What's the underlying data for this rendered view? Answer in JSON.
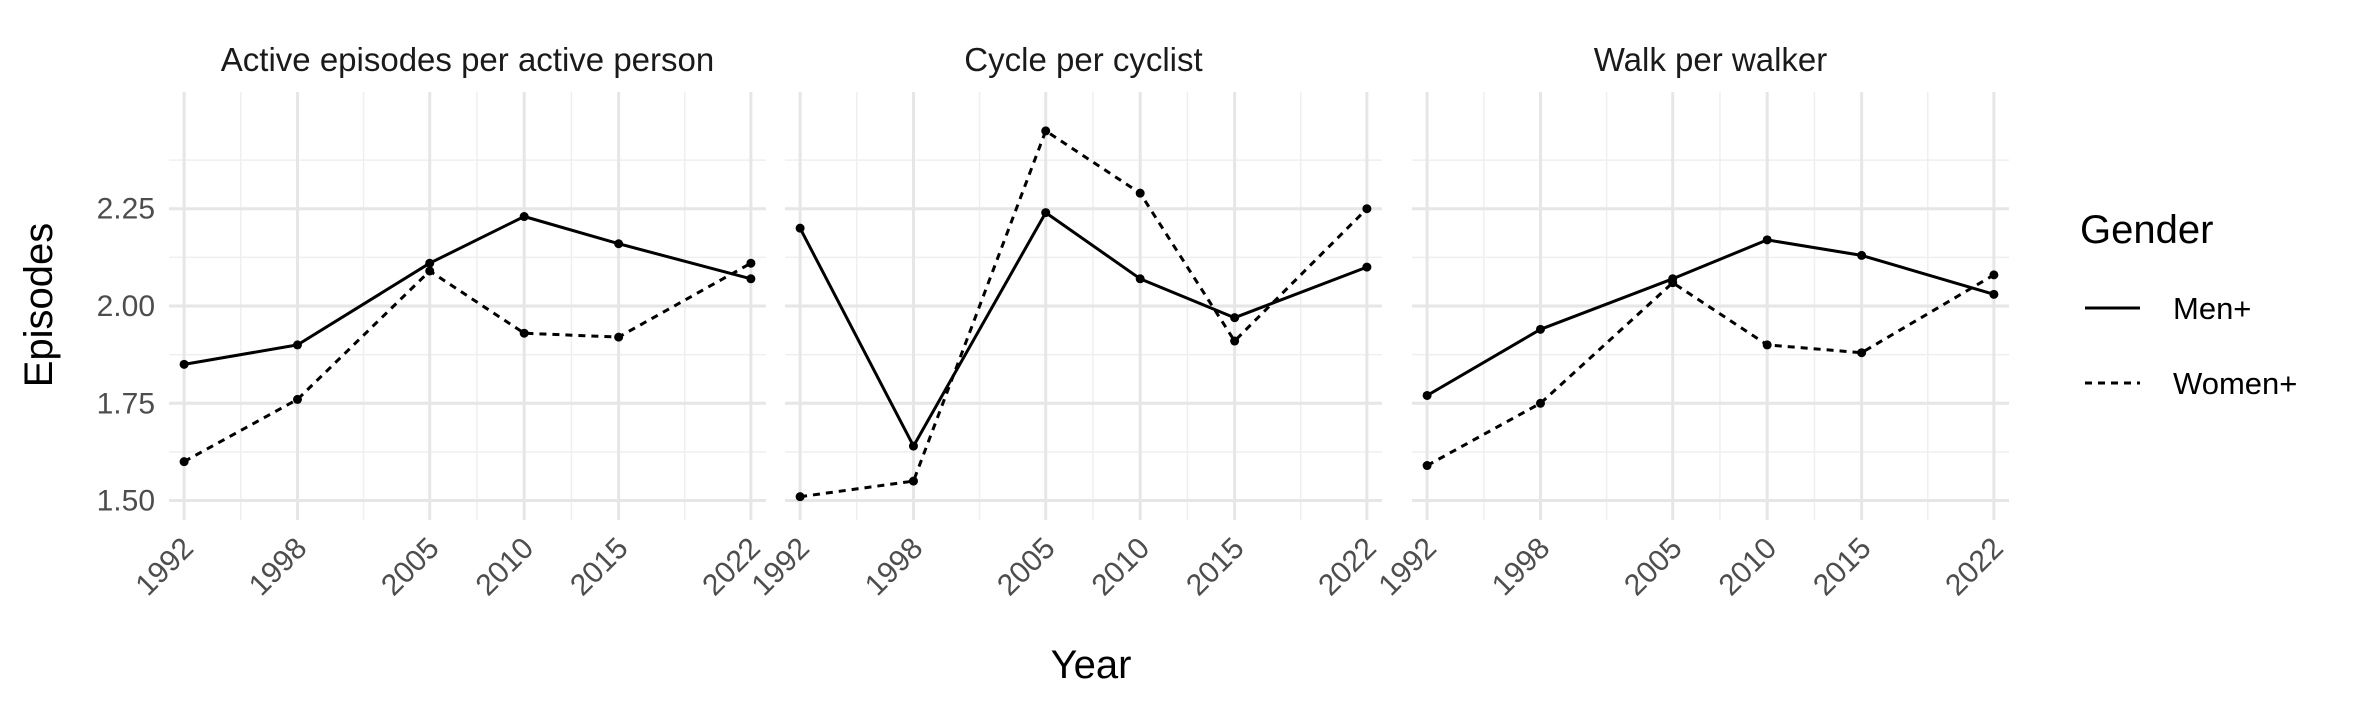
{
  "chart_data": {
    "type": "line",
    "xlabel": "Year",
    "ylabel": "Episodes",
    "x_ticks": [
      1992,
      1998,
      2005,
      2010,
      2015,
      2022
    ],
    "xlim": [
      1991.2,
      2022.8
    ],
    "ylim": [
      1.45,
      2.55
    ],
    "y_ticks": [
      1.5,
      1.75,
      2.0,
      2.25
    ],
    "y_tick_labels": [
      "1.50",
      "1.75",
      "2.00",
      "2.25"
    ],
    "grid": true,
    "legend": {
      "title": "Gender",
      "position": "right",
      "entries": [
        {
          "label": "Men+",
          "style": "solid"
        },
        {
          "label": "Women+",
          "style": "dashed"
        }
      ]
    },
    "panels": [
      {
        "title": "Active episodes per active person",
        "series": [
          {
            "name": "Men+",
            "x": [
              1992,
              1998,
              2005,
              2010,
              2015,
              2022
            ],
            "values": [
              1.85,
              1.9,
              2.11,
              2.23,
              2.16,
              2.07
            ]
          },
          {
            "name": "Women+",
            "x": [
              1992,
              1998,
              2005,
              2010,
              2015,
              2022
            ],
            "values": [
              1.6,
              1.76,
              2.09,
              1.93,
              1.92,
              2.11
            ]
          }
        ]
      },
      {
        "title": "Cycle per cyclist",
        "series": [
          {
            "name": "Men+",
            "x": [
              1992,
              1998,
              2005,
              2010,
              2015,
              2022
            ],
            "values": [
              2.2,
              1.64,
              2.24,
              2.07,
              1.97,
              2.1
            ]
          },
          {
            "name": "Women+",
            "x": [
              1992,
              1998,
              2005,
              2010,
              2015,
              2022
            ],
            "values": [
              1.51,
              1.55,
              2.45,
              2.29,
              1.91,
              2.25
            ]
          }
        ]
      },
      {
        "title": "Walk per walker",
        "series": [
          {
            "name": "Men+",
            "x": [
              1992,
              1998,
              2005,
              2010,
              2015,
              2022
            ],
            "values": [
              1.77,
              1.94,
              2.07,
              2.17,
              2.13,
              2.03
            ]
          },
          {
            "name": "Women+",
            "x": [
              1992,
              1998,
              2005,
              2010,
              2015,
              2022
            ],
            "values": [
              1.59,
              1.75,
              2.06,
              1.9,
              1.88,
              2.08
            ]
          }
        ]
      }
    ]
  }
}
